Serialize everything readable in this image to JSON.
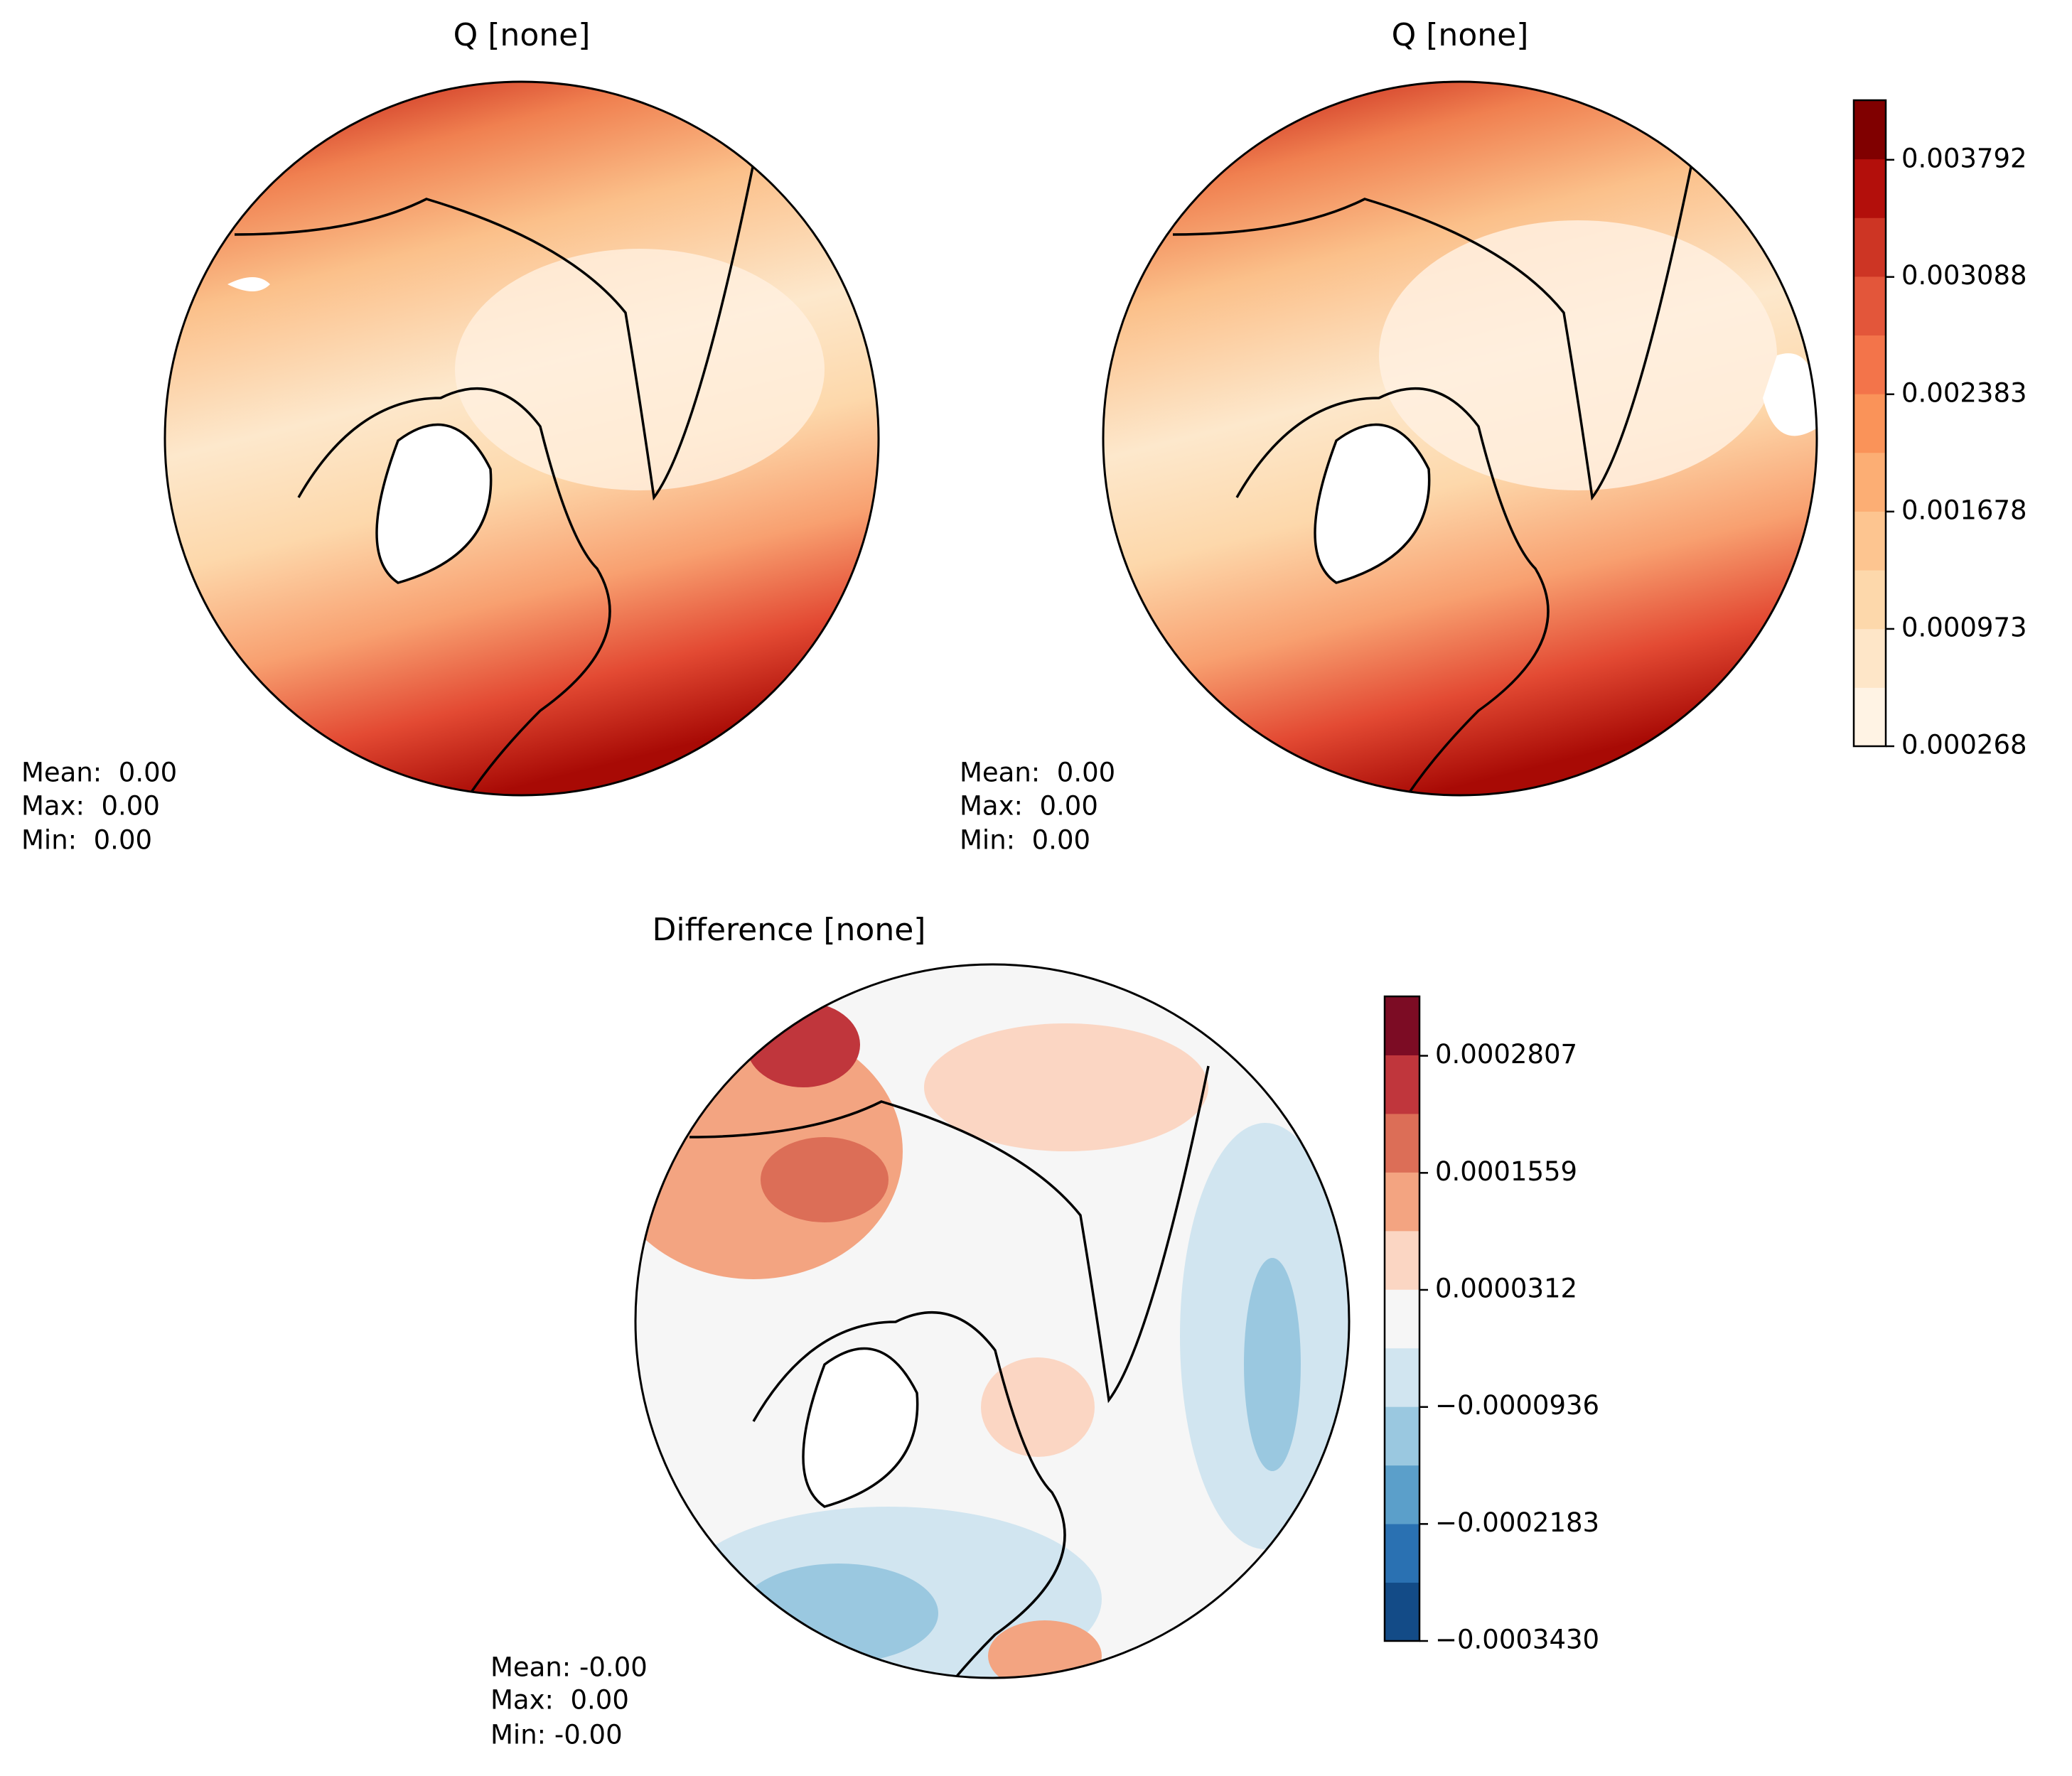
{
  "panels": [
    {
      "title": "Q [none]",
      "stats": [
        "Mean:  0.00",
        "Max:  0.00",
        "Min:  0.00"
      ]
    },
    {
      "title": "Q [none]",
      "stats": [
        "Mean:  0.00",
        "Max:  0.00",
        "Min:  0.00"
      ]
    },
    {
      "title": "Difference [none]",
      "stats": [
        "Mean: -0.00",
        "Max:  0.00",
        "Min: -0.00"
      ]
    }
  ],
  "colorbars": [
    {
      "ylim": [
        0.000268,
        0.00415
      ],
      "yticks": [
        0.000268,
        0.000973,
        0.001678,
        0.002383,
        0.003088,
        0.003792
      ],
      "colors": [
        "#fff3e4",
        "#fee6c8",
        "#fdd8ab",
        "#fdc590",
        "#fcae74",
        "#fa9359",
        "#f3744a",
        "#e3563a",
        "#cd3524",
        "#b30f0b",
        "#800000"
      ]
    },
    {
      "ylim": [
        -0.000343,
        0.000344
      ],
      "yticks": [
        {
          "value": -0.000343,
          "label": "−0.0003430"
        },
        {
          "value": -0.0002183,
          "label": "−0.0002183"
        },
        {
          "value": -9.36e-05,
          "label": "−0.0000936"
        },
        3.12e-05,
        0.0001559,
        0.0002807
      ],
      "colors": [
        "#134b87",
        "#2a71b2",
        "#5b9fca",
        "#9ac8e0",
        "#d1e5f0",
        "#f6f6f6",
        "#fbd6c3",
        "#f3a481",
        "#dc6e57",
        "#c0363c",
        "#7c0c24"
      ]
    }
  ]
}
